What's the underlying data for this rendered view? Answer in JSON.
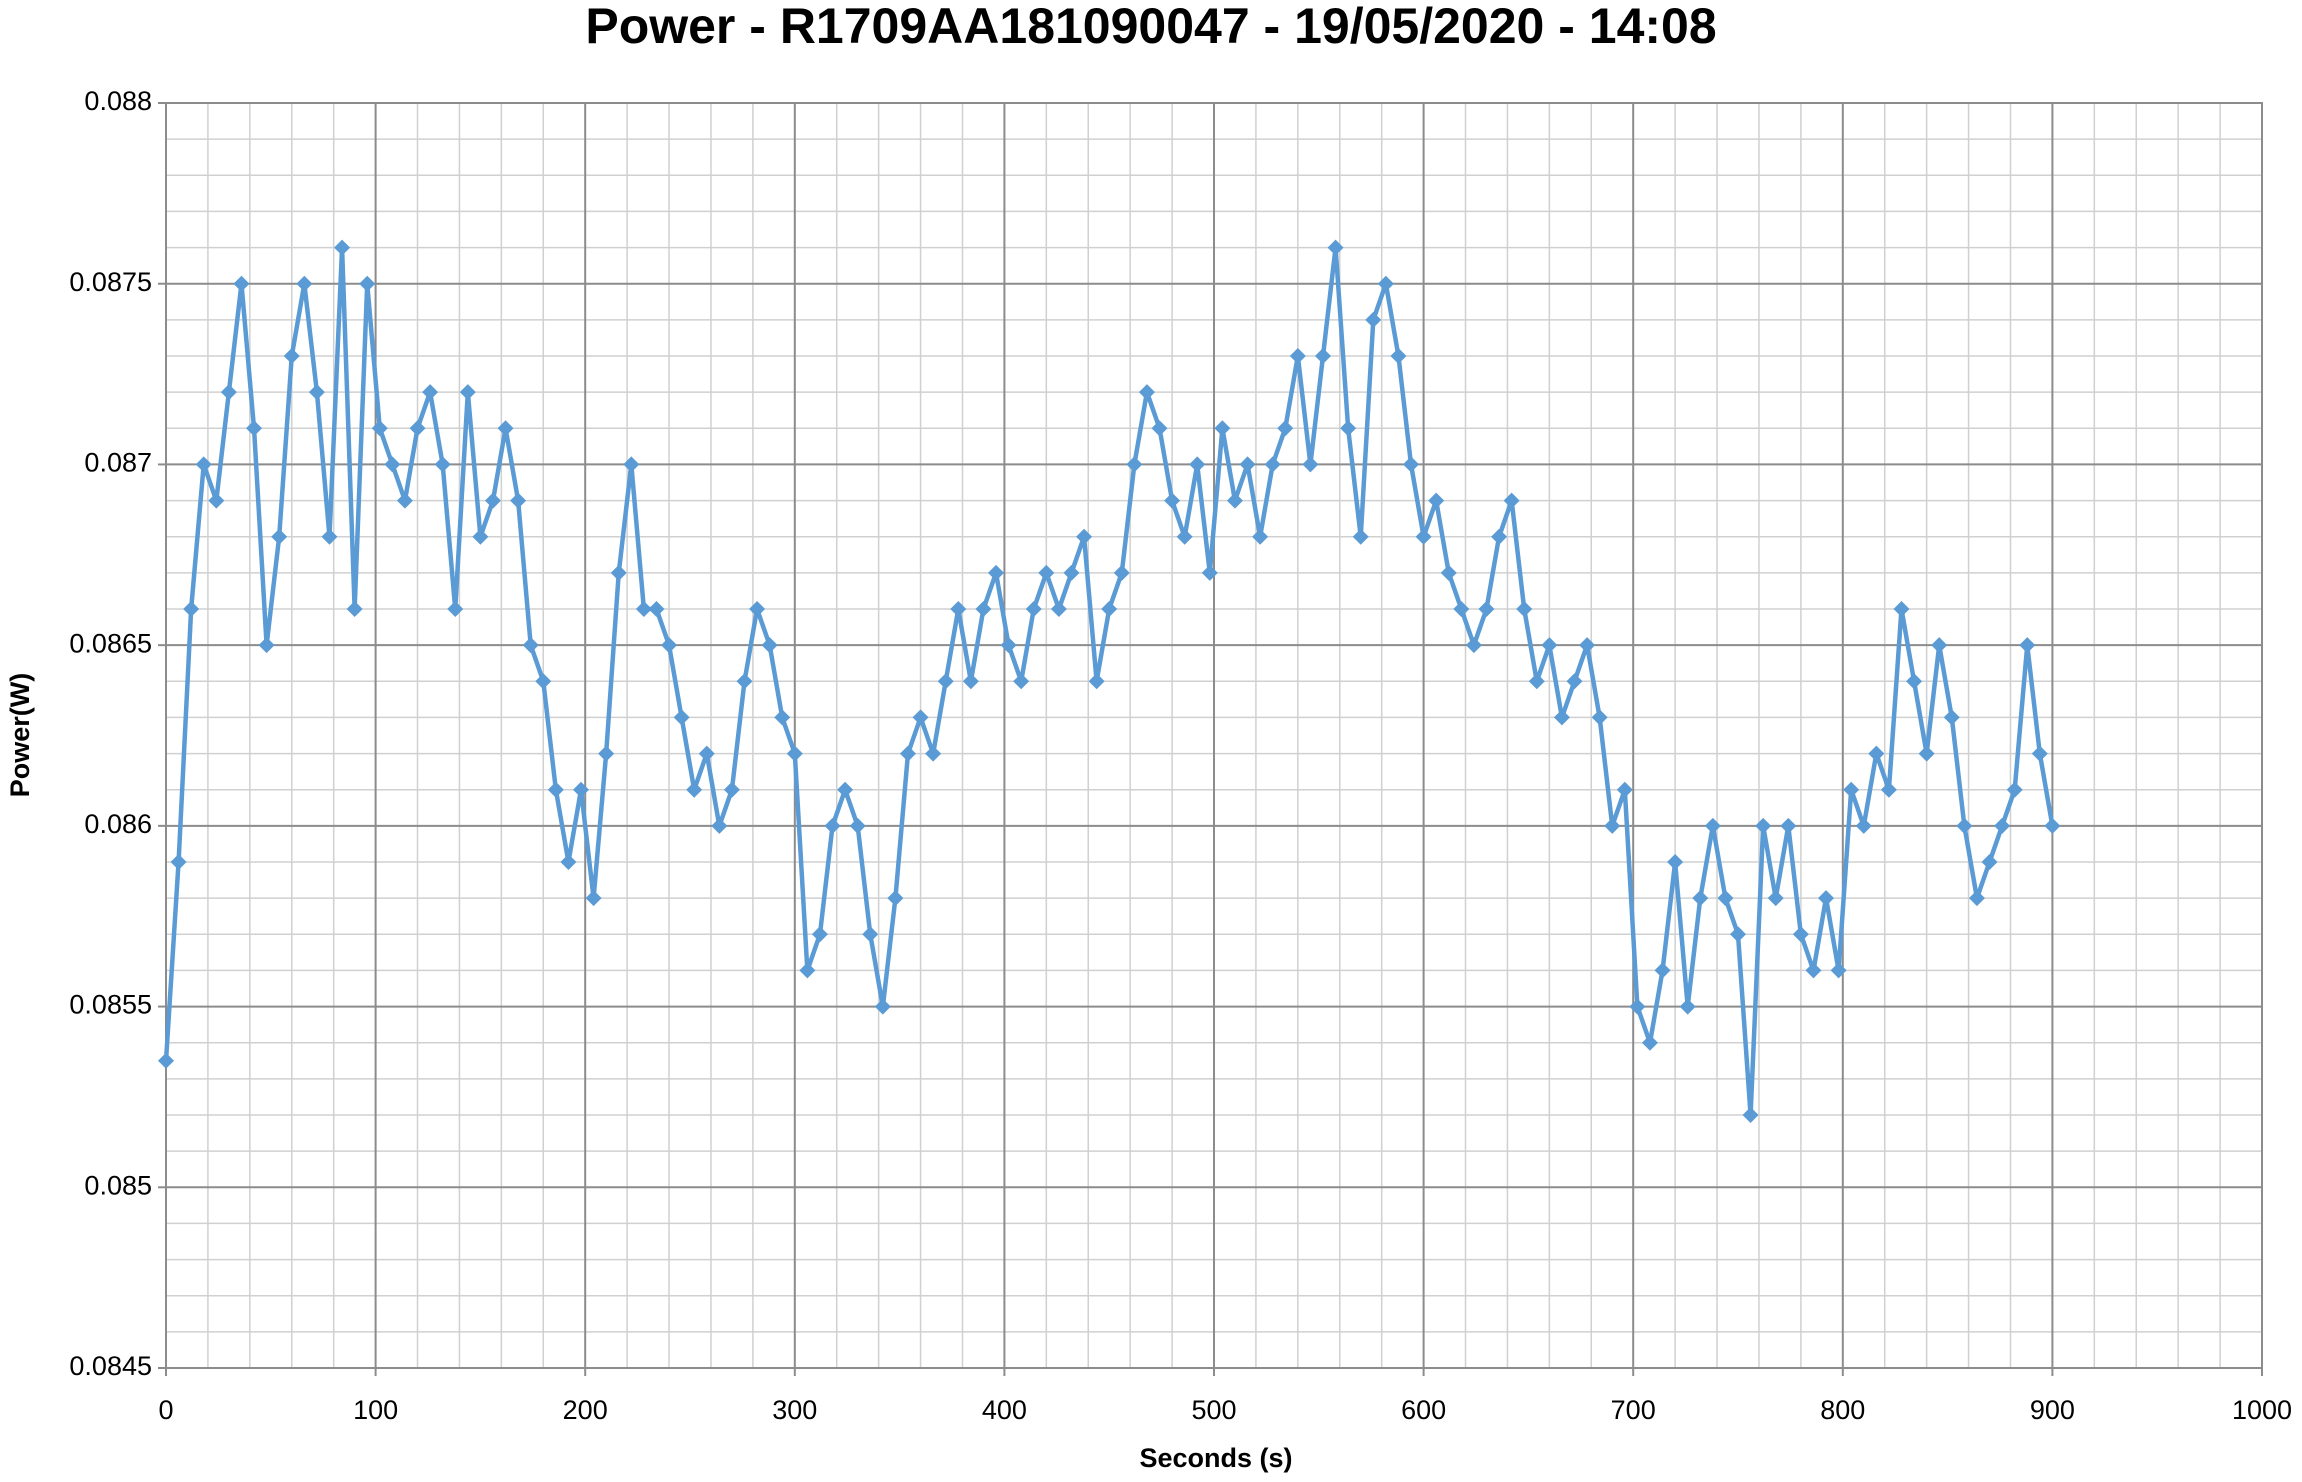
{
  "chart_data": {
    "type": "line",
    "title": "Power - R1709AA181090047 - 19/05/2020 - 14:08",
    "x_label": "Seconds (s)",
    "y_label": "Power(W)",
    "xlim": [
      0,
      1000
    ],
    "xticks": [
      0,
      100,
      200,
      300,
      400,
      500,
      600,
      700,
      800,
      900,
      1000
    ],
    "ylim": [
      0.0845,
      0.088
    ],
    "yticks": [
      0.0845,
      0.085,
      0.0855,
      0.086,
      0.0865,
      0.087,
      0.0875,
      0.088
    ],
    "grid": true,
    "minor_grid_step": [
      20,
      0.0001
    ],
    "x": [
      0,
      6,
      12,
      18,
      24,
      30,
      36,
      42,
      48,
      54,
      60,
      66,
      72,
      78,
      84,
      90,
      96,
      102,
      108,
      114,
      120,
      126,
      132,
      138,
      144,
      150,
      156,
      162,
      168,
      174,
      180,
      186,
      192,
      198,
      204,
      210,
      216,
      222,
      228,
      234,
      240,
      246,
      252,
      258,
      264,
      270,
      276,
      282,
      288,
      294,
      300,
      306,
      312,
      318,
      324,
      330,
      336,
      342,
      348,
      354,
      360,
      366,
      372,
      378,
      384,
      390,
      396,
      402,
      408,
      414,
      420,
      426,
      432,
      438,
      444,
      450,
      456,
      462,
      468,
      474,
      480,
      486,
      492,
      498,
      504,
      510,
      516,
      522,
      528,
      534,
      540,
      546,
      552,
      558,
      564,
      570,
      576,
      582,
      588,
      594,
      600,
      606,
      612,
      618,
      624,
      630,
      636,
      642,
      648,
      654,
      660,
      666,
      672,
      678,
      684,
      690,
      696,
      702,
      708,
      714,
      720,
      726,
      732,
      738,
      744,
      750,
      756,
      762,
      768,
      774,
      780,
      786,
      792,
      798,
      804,
      810,
      816,
      822,
      828,
      834,
      840,
      846,
      852,
      858,
      864,
      870,
      876,
      882,
      888,
      894,
      900
    ],
    "series": [
      {
        "color": "#5b9bd5",
        "values": [
          0.08535,
          0.0859,
          0.0866,
          0.087,
          0.0869,
          0.0872,
          0.0875,
          0.0871,
          0.0865,
          0.0868,
          0.0873,
          0.0875,
          0.0872,
          0.0868,
          0.0876,
          0.0866,
          0.0875,
          0.0871,
          0.087,
          0.0869,
          0.0871,
          0.0872,
          0.087,
          0.0866,
          0.0872,
          0.0868,
          0.0869,
          0.0871,
          0.0869,
          0.0865,
          0.0864,
          0.0861,
          0.0859,
          0.0861,
          0.0858,
          0.0862,
          0.0867,
          0.087,
          0.0866,
          0.0866,
          0.0865,
          0.0863,
          0.0861,
          0.0862,
          0.086,
          0.0861,
          0.0864,
          0.0866,
          0.0865,
          0.0863,
          0.0862,
          0.0856,
          0.0857,
          0.086,
          0.0861,
          0.086,
          0.0857,
          0.0855,
          0.0858,
          0.0862,
          0.0863,
          0.0862,
          0.0864,
          0.0866,
          0.0864,
          0.0866,
          0.0867,
          0.0865,
          0.0864,
          0.0866,
          0.0867,
          0.0866,
          0.0867,
          0.0868,
          0.0864,
          0.0866,
          0.0867,
          0.087,
          0.0872,
          0.0871,
          0.0869,
          0.0868,
          0.087,
          0.0867,
          0.0871,
          0.0869,
          0.087,
          0.0868,
          0.087,
          0.0871,
          0.0873,
          0.087,
          0.0873,
          0.0876,
          0.0871,
          0.0868,
          0.0874,
          0.0875,
          0.0873,
          0.087,
          0.0868,
          0.0869,
          0.0867,
          0.0866,
          0.0865,
          0.0866,
          0.0868,
          0.0869,
          0.0866,
          0.0864,
          0.0865,
          0.0863,
          0.0864,
          0.0865,
          0.0863,
          0.086,
          0.0861,
          0.0855,
          0.0854,
          0.0856,
          0.0859,
          0.0855,
          0.0858,
          0.086,
          0.0858,
          0.0857,
          0.0852,
          0.086,
          0.0858,
          0.086,
          0.0857,
          0.0856,
          0.0858,
          0.0856,
          0.0861,
          0.086,
          0.0862,
          0.0861,
          0.0866,
          0.0864,
          0.0862,
          0.0865,
          0.0863,
          0.086,
          0.0858,
          0.0859,
          0.086,
          0.0861,
          0.0865,
          0.0862,
          0.086
        ]
      }
    ]
  }
}
